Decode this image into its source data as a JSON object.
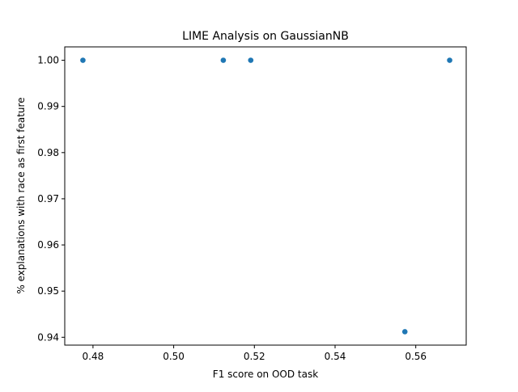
{
  "chart_data": {
    "type": "scatter",
    "title": "LIME Analysis on GaussianNB",
    "xlabel": "F1 score on OOD task",
    "ylabel": "% explanations with race as first feature",
    "xlim": [
      0.473,
      0.5725
    ],
    "ylim": [
      0.9383,
      1.0029
    ],
    "xticks": [
      0.48,
      0.5,
      0.52,
      0.54,
      0.56
    ],
    "xtick_labels": [
      "0.48",
      "0.50",
      "0.52",
      "0.54",
      "0.56"
    ],
    "yticks": [
      0.94,
      0.95,
      0.96,
      0.97,
      0.98,
      0.99,
      1.0
    ],
    "ytick_labels": [
      "0.94",
      "0.95",
      "0.96",
      "0.97",
      "0.98",
      "0.99",
      "1.00"
    ],
    "grid": false,
    "points": [
      {
        "x": 0.4775,
        "y": 1.0
      },
      {
        "x": 0.5123,
        "y": 1.0
      },
      {
        "x": 0.5191,
        "y": 1.0
      },
      {
        "x": 0.5573,
        "y": 0.9412
      },
      {
        "x": 0.5684,
        "y": 1.0
      }
    ],
    "marker_color": "#1f77b4"
  }
}
